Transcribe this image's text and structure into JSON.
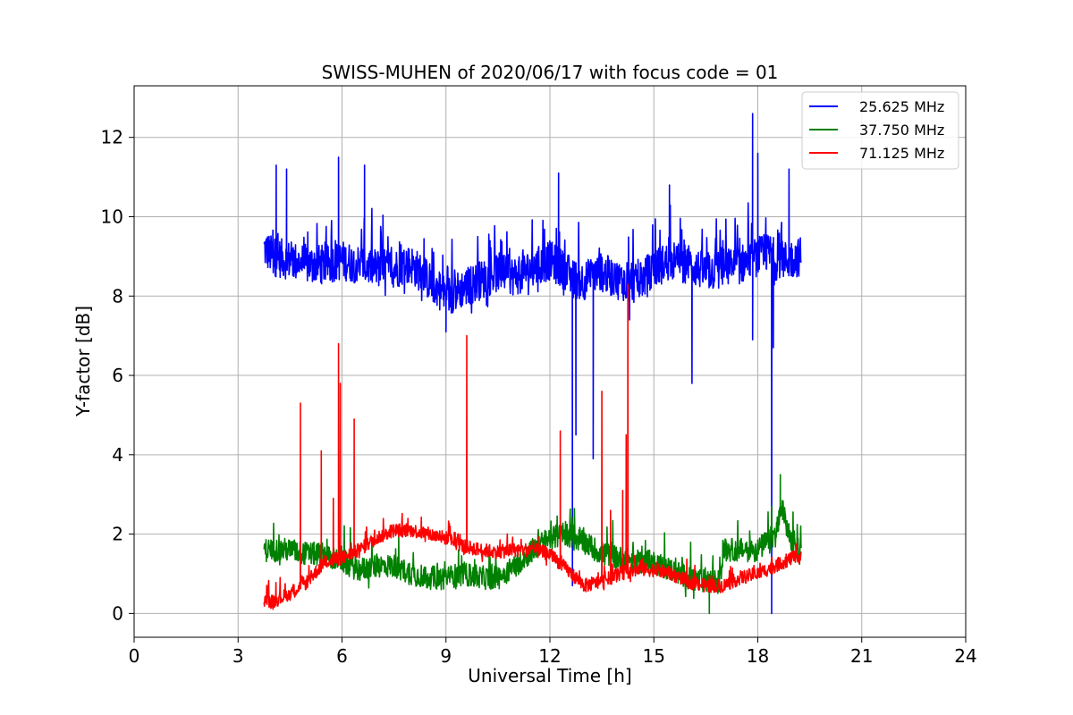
{
  "chart_data": {
    "type": "line",
    "title": "SWISS-MUHEN of 2020/06/17 with focus code = 01",
    "xlabel": "Universal Time [h]",
    "ylabel": "Y-factor [dB]",
    "xlim": [
      0,
      24
    ],
    "ylim": [
      -0.6,
      13.3
    ],
    "xticks": [
      0,
      3,
      6,
      9,
      12,
      15,
      18,
      21,
      24
    ],
    "yticks": [
      0,
      2,
      4,
      6,
      8,
      10,
      12
    ],
    "grid": true,
    "legend_position": "top-right",
    "series": [
      {
        "name": "25.625 MHz",
        "color": "#0000ff",
        "x": [
          3.75,
          4.0,
          4.5,
          5.0,
          5.5,
          6.0,
          6.5,
          7.0,
          7.5,
          8.0,
          8.5,
          9.0,
          9.5,
          10.0,
          10.5,
          11.0,
          11.5,
          12.0,
          12.5,
          12.7,
          13.0,
          13.5,
          14.0,
          14.5,
          15.0,
          15.5,
          16.0,
          16.5,
          17.0,
          17.5,
          18.0,
          18.4,
          18.5,
          18.8,
          19.25
        ],
        "y": [
          9.2,
          9.0,
          8.9,
          8.8,
          8.8,
          8.9,
          8.8,
          8.7,
          8.7,
          8.8,
          8.4,
          8.0,
          8.2,
          8.4,
          8.6,
          8.5,
          8.7,
          8.9,
          8.6,
          8.4,
          8.4,
          8.6,
          8.4,
          8.3,
          8.7,
          8.9,
          8.8,
          8.6,
          8.7,
          8.8,
          9.0,
          9.1,
          8.9,
          8.9,
          9.0
        ],
        "noise": 1.0,
        "spikes": [
          [
            4.1,
            11.3
          ],
          [
            4.4,
            11.2
          ],
          [
            5.9,
            11.5
          ],
          [
            6.65,
            11.3
          ],
          [
            12.25,
            11.1
          ],
          [
            15.45,
            10.8
          ],
          [
            17.85,
            12.6
          ],
          [
            18.0,
            11.6
          ],
          [
            18.9,
            11.2
          ]
        ],
        "dips": [
          [
            9.0,
            7.1
          ],
          [
            12.65,
            0.7
          ],
          [
            12.75,
            4.5
          ],
          [
            13.25,
            3.9
          ],
          [
            14.3,
            7.4
          ],
          [
            16.1,
            5.8
          ],
          [
            17.85,
            6.9
          ],
          [
            18.4,
            0.0
          ],
          [
            18.45,
            6.7
          ]
        ]
      },
      {
        "name": "37.750 MHz",
        "color": "#008000",
        "x": [
          3.75,
          4.0,
          4.5,
          5.0,
          5.5,
          6.0,
          6.5,
          7.0,
          7.5,
          8.0,
          8.5,
          9.0,
          9.5,
          10.0,
          10.5,
          11.0,
          11.5,
          12.0,
          12.5,
          13.0,
          13.5,
          14.0,
          14.5,
          15.0,
          15.5,
          16.0,
          16.5,
          16.9,
          17.0,
          17.5,
          18.0,
          18.5,
          18.7,
          19.0,
          19.25
        ],
        "y": [
          1.6,
          1.6,
          1.6,
          1.5,
          1.5,
          1.3,
          1.1,
          1.2,
          1.2,
          1.0,
          0.9,
          0.9,
          1.0,
          0.9,
          0.9,
          1.2,
          1.6,
          1.9,
          2.0,
          1.8,
          1.5,
          1.4,
          1.3,
          1.3,
          1.1,
          0.9,
          0.8,
          0.8,
          1.6,
          1.6,
          1.6,
          2.0,
          2.6,
          1.7,
          1.6
        ],
        "noise": 0.6,
        "spikes": [
          [
            18.65,
            3.5
          ],
          [
            18.4,
            2.7
          ]
        ],
        "dips": [
          [
            16.6,
            0.0
          ]
        ]
      },
      {
        "name": "71.125 MHz",
        "color": "#ff0000",
        "x": [
          3.75,
          4.0,
          4.5,
          5.0,
          5.5,
          6.0,
          6.5,
          7.0,
          7.5,
          8.0,
          8.5,
          9.0,
          9.5,
          10.0,
          10.5,
          11.0,
          11.5,
          12.0,
          12.5,
          13.0,
          13.5,
          14.0,
          14.5,
          15.0,
          15.5,
          16.0,
          16.5,
          17.0,
          17.5,
          18.0,
          18.5,
          19.0,
          19.25
        ],
        "y": [
          0.35,
          0.3,
          0.5,
          0.8,
          1.3,
          1.4,
          1.6,
          1.9,
          2.1,
          2.1,
          2.0,
          1.9,
          1.7,
          1.6,
          1.55,
          1.6,
          1.6,
          1.5,
          1.1,
          0.7,
          0.8,
          1.0,
          1.1,
          1.1,
          1.0,
          0.8,
          0.7,
          0.7,
          0.9,
          1.0,
          1.2,
          1.4,
          1.4
        ],
        "noise": 0.35,
        "spikes": [
          [
            4.8,
            5.3
          ],
          [
            5.4,
            4.1
          ],
          [
            5.75,
            2.9
          ],
          [
            5.9,
            6.8
          ],
          [
            5.95,
            5.8
          ],
          [
            6.35,
            4.9
          ],
          [
            9.6,
            7.0
          ],
          [
            12.3,
            4.6
          ],
          [
            13.5,
            5.6
          ],
          [
            13.75,
            2.6
          ],
          [
            14.1,
            3.1
          ],
          [
            14.25,
            8.3
          ],
          [
            14.2,
            4.5
          ]
        ],
        "dips": []
      }
    ]
  }
}
